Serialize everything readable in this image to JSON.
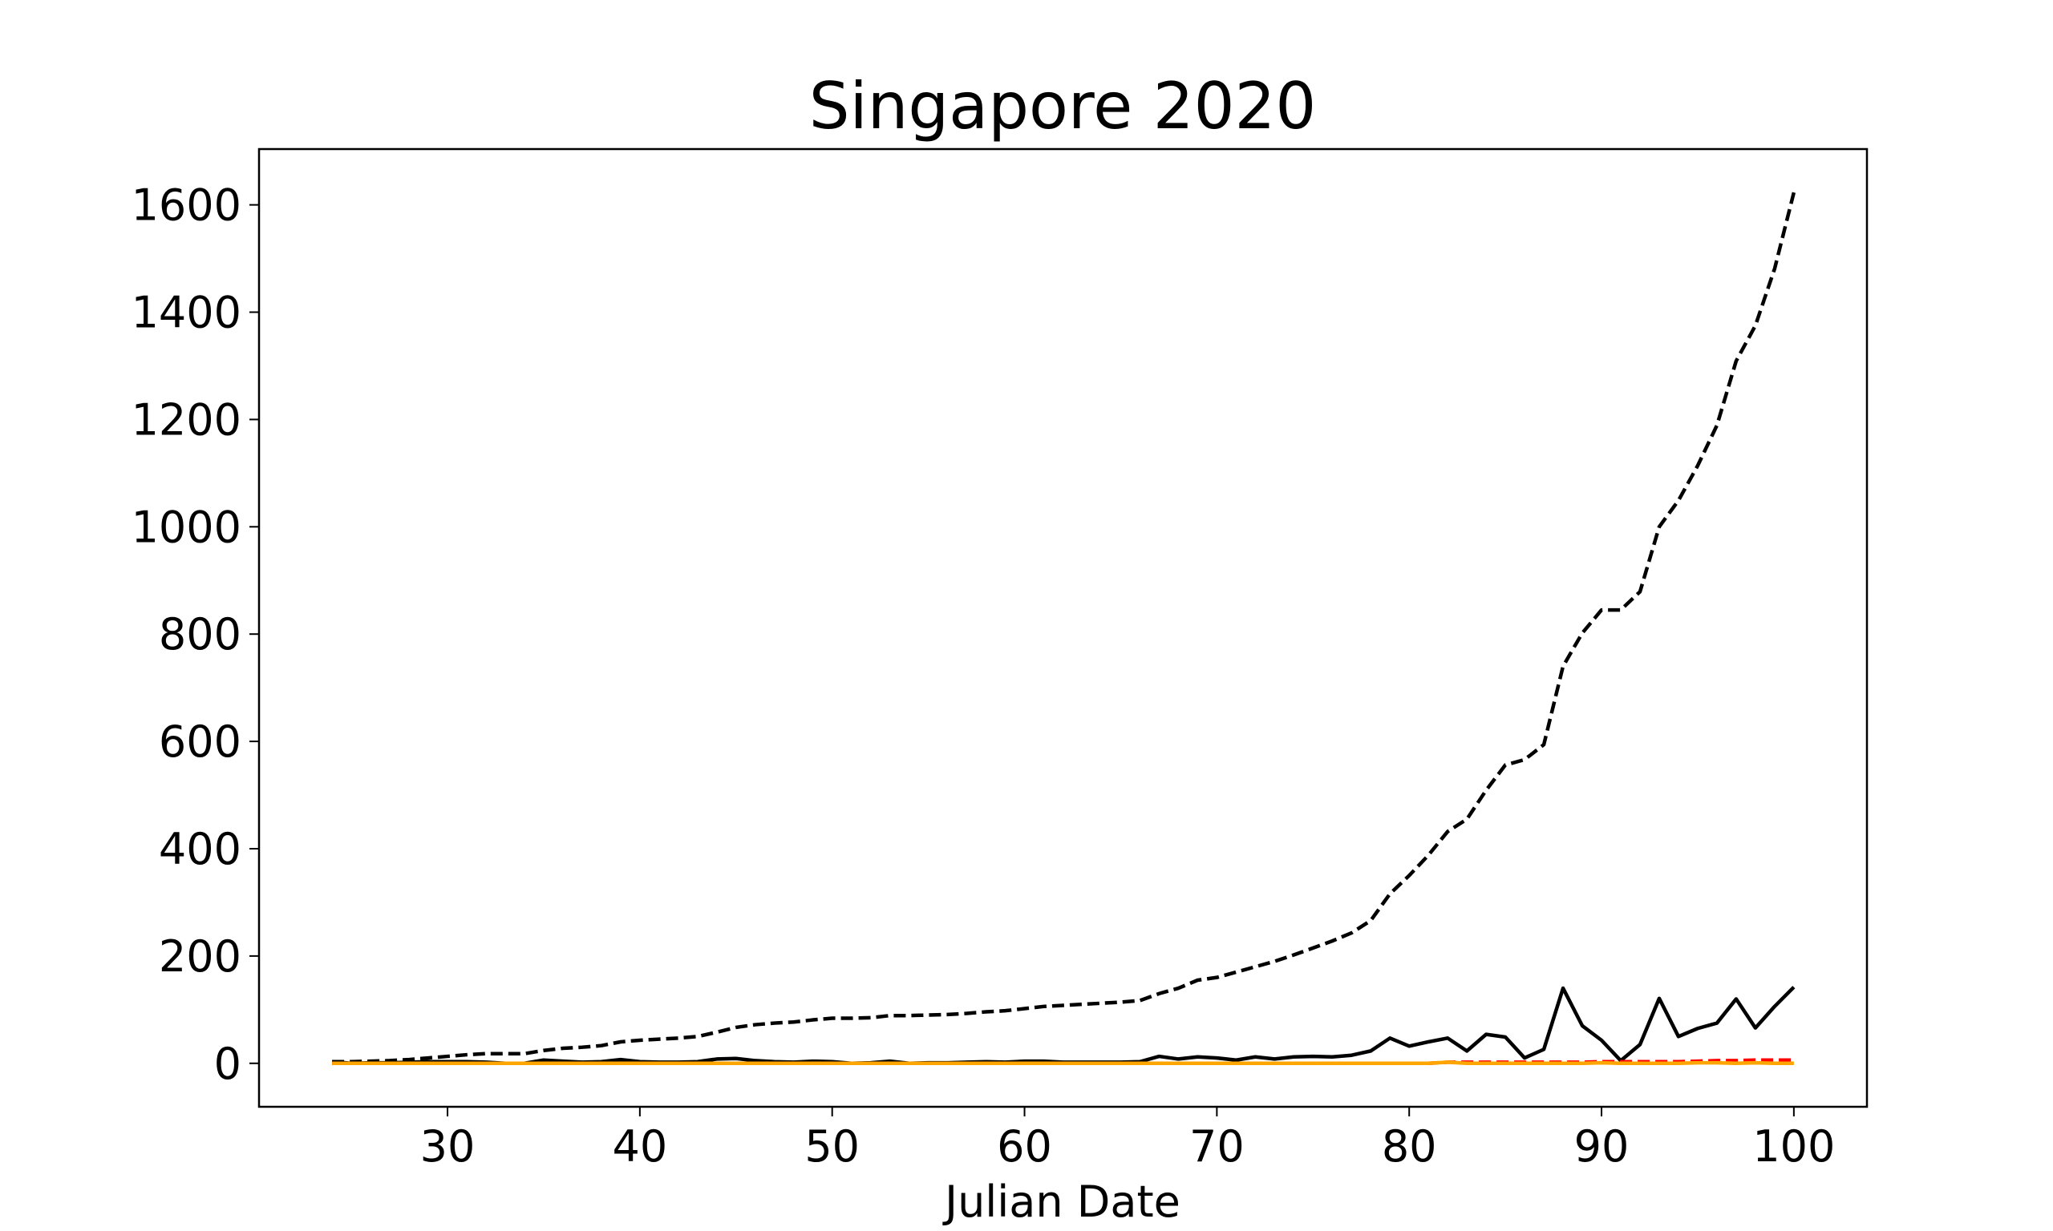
{
  "chart_data": {
    "type": "line",
    "title": "Singapore 2020",
    "x_label": "Julian Date",
    "x": [
      24,
      25,
      26,
      27,
      28,
      29,
      30,
      31,
      32,
      33,
      34,
      35,
      36,
      37,
      38,
      39,
      40,
      41,
      42,
      43,
      44,
      45,
      46,
      47,
      48,
      49,
      50,
      51,
      52,
      53,
      54,
      55,
      56,
      57,
      58,
      59,
      60,
      61,
      62,
      63,
      64,
      65,
      66,
      67,
      68,
      69,
      70,
      71,
      72,
      73,
      74,
      75,
      76,
      77,
      78,
      79,
      80,
      81,
      82,
      83,
      84,
      85,
      86,
      87,
      88,
      89,
      90,
      91,
      92,
      93,
      94,
      95,
      96,
      97,
      98,
      99,
      100
    ],
    "series": [
      {
        "color": "#000000",
        "linestyle": "dashed",
        "values": [
          3,
          3,
          4,
          5,
          7,
          10,
          13,
          16,
          18,
          18,
          18,
          24,
          28,
          30,
          33,
          40,
          43,
          45,
          47,
          50,
          58,
          67,
          72,
          75,
          77,
          81,
          84,
          84,
          85,
          89,
          89,
          90,
          91,
          93,
          96,
          98,
          102,
          106,
          108,
          110,
          112,
          114,
          117,
          130,
          140,
          155,
          160,
          170,
          180,
          190,
          202,
          215,
          228,
          243,
          266,
          316,
          350,
          388,
          432,
          455,
          509,
          556,
          566,
          594,
          740,
          802,
          845,
          845,
          879,
          1000,
          1049,
          1114,
          1189,
          1309,
          1375,
          1481,
          1623
        ]
      },
      {
        "color": "#000000",
        "linestyle": "solid",
        "values": [
          3,
          0,
          1,
          1,
          2,
          3,
          3,
          3,
          2,
          0,
          0,
          6,
          4,
          2,
          3,
          7,
          3,
          2,
          2,
          3,
          8,
          9,
          5,
          3,
          2,
          4,
          3,
          0,
          1,
          4,
          0,
          1,
          1,
          2,
          3,
          2,
          4,
          4,
          2,
          2,
          2,
          2,
          3,
          13,
          8,
          12,
          10,
          6,
          12,
          8,
          12,
          13,
          12,
          15,
          23,
          47,
          32,
          40,
          47,
          23,
          54,
          49,
          10,
          26,
          140,
          70,
          43,
          5,
          35,
          121,
          50,
          65,
          75,
          120,
          66,
          106,
          142
        ]
      },
      {
        "color": "#ff0000",
        "linestyle": "dashed",
        "values": [
          0,
          0,
          0,
          0,
          0,
          0,
          0,
          0,
          0,
          0,
          0,
          0,
          0,
          0,
          0,
          0,
          0,
          0,
          0,
          0,
          0,
          0,
          0,
          0,
          0,
          0,
          0,
          0,
          0,
          0,
          0,
          0,
          0,
          0,
          0,
          0,
          0,
          0,
          0,
          0,
          0,
          0,
          0,
          0,
          0,
          0,
          0,
          0,
          0,
          0,
          0,
          0,
          0,
          0,
          0,
          0,
          0,
          0,
          2,
          2,
          2,
          2,
          2,
          2,
          2,
          2,
          3,
          3,
          3,
          3,
          3,
          4,
          5,
          5,
          6,
          6,
          6
        ]
      },
      {
        "color": "#ffa500",
        "linestyle": "solid",
        "values": [
          0,
          0,
          0,
          0,
          0,
          0,
          0,
          0,
          0,
          0,
          0,
          0,
          0,
          0,
          0,
          0,
          0,
          0,
          0,
          0,
          0,
          0,
          0,
          0,
          0,
          0,
          0,
          0,
          0,
          0,
          0,
          0,
          0,
          0,
          0,
          0,
          0,
          0,
          0,
          0,
          0,
          0,
          0,
          0,
          0,
          0,
          0,
          0,
          0,
          0,
          0,
          0,
          0,
          0,
          0,
          0,
          0,
          0,
          2,
          0,
          0,
          0,
          0,
          0,
          0,
          0,
          1,
          0,
          0,
          0,
          0,
          1,
          1,
          0,
          1,
          0,
          0
        ]
      }
    ],
    "xlim": [
      20.2,
      103.8
    ],
    "xticks": [
      30,
      40,
      50,
      60,
      70,
      80,
      90,
      100
    ],
    "ylim": [
      -81,
      1704
    ],
    "yticks": [
      0,
      200,
      400,
      600,
      800,
      1000,
      1200,
      1400,
      1600
    ],
    "grid": false
  }
}
